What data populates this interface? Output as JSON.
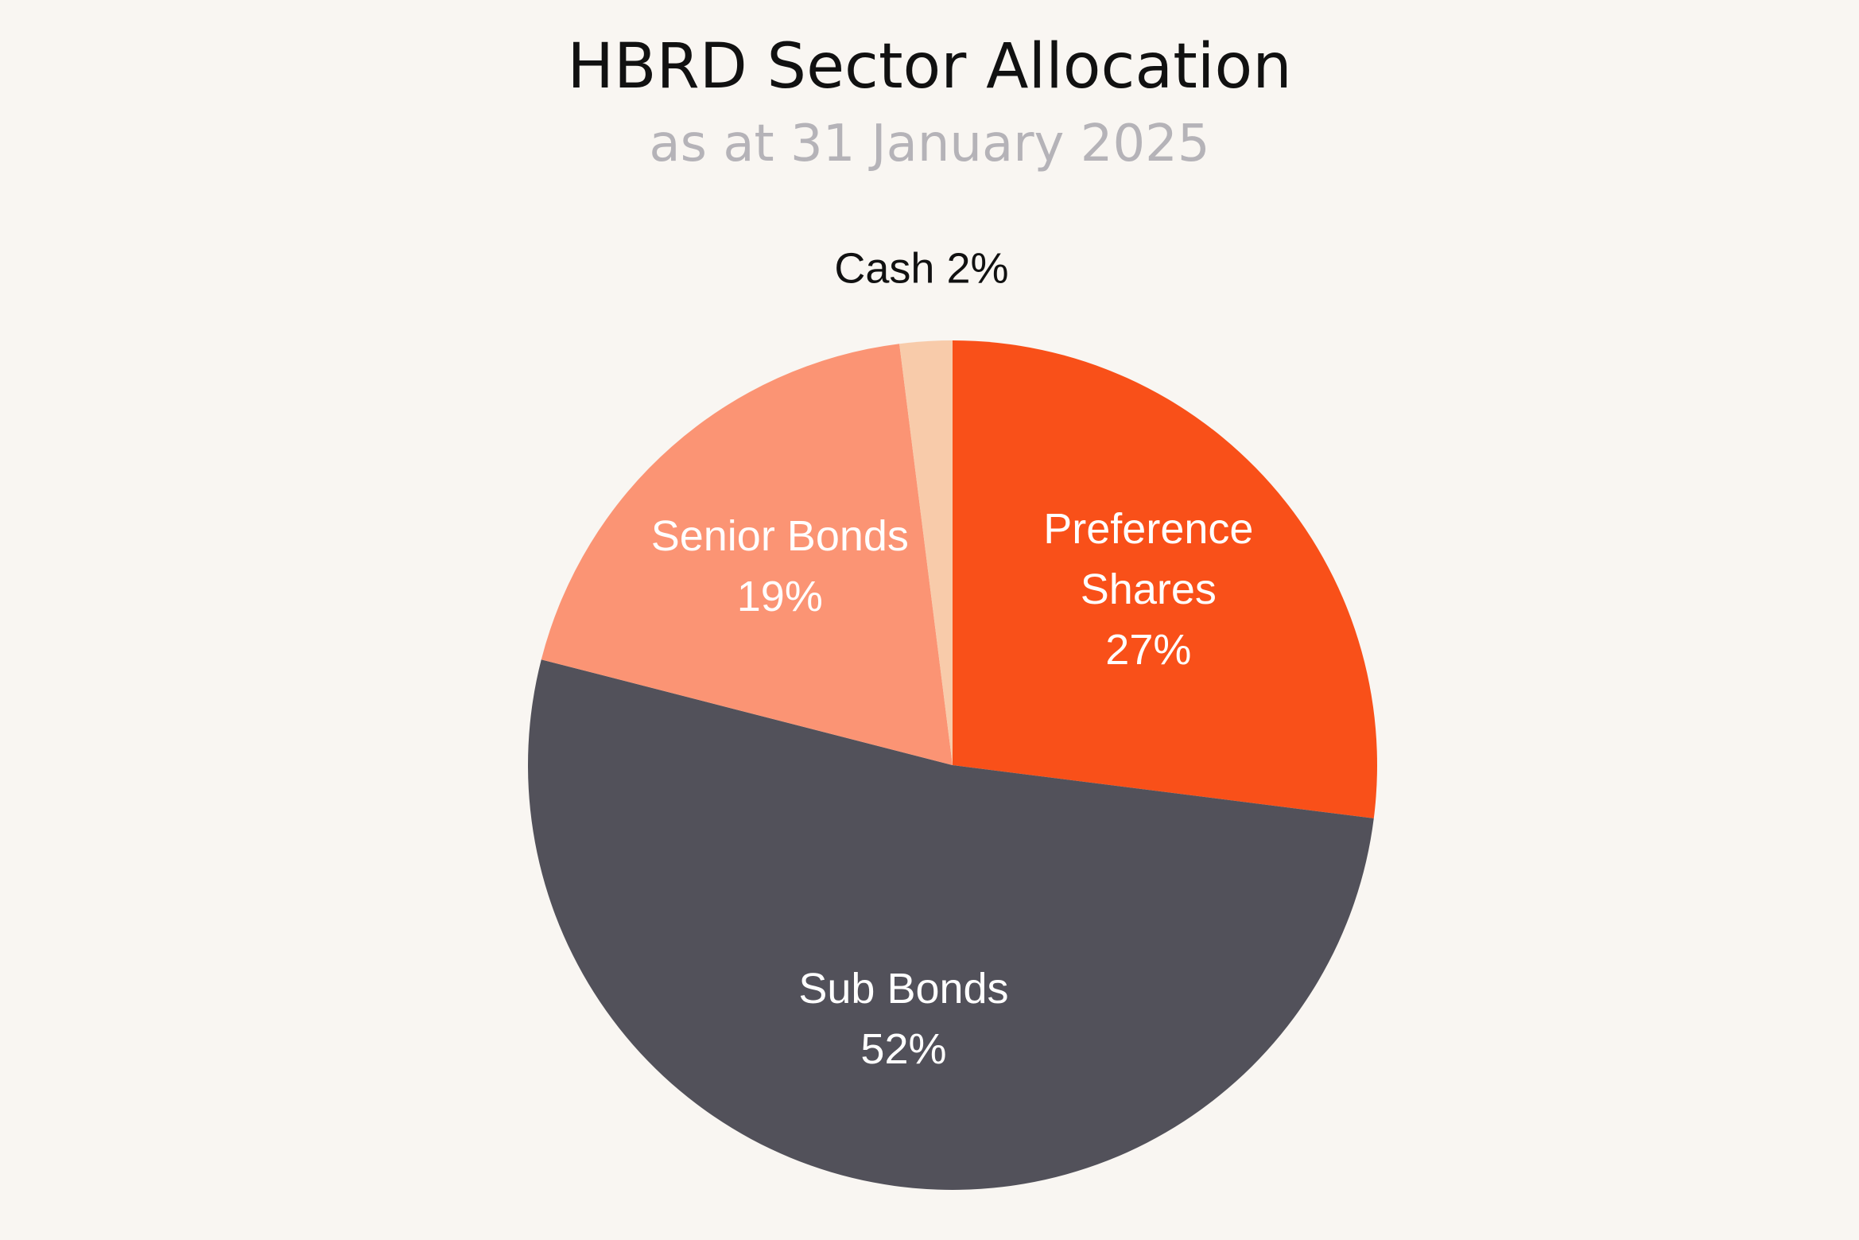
{
  "chart_data": {
    "type": "pie",
    "title": "HBRD Sector Allocation",
    "subtitle": "as at 31 January 2025",
    "start_angle_deg": 0,
    "direction": "clockwise",
    "slices": [
      {
        "name": "Preference Shares",
        "value": 27,
        "label_lines": [
          "Preference",
          "Shares",
          "27%"
        ],
        "color": "#f95019",
        "label_color": "#ffffff",
        "label_placement": "inside"
      },
      {
        "name": "Sub Bonds",
        "value": 52,
        "label_lines": [
          "Sub Bonds",
          "52%"
        ],
        "color": "#52515a",
        "label_color": "#ffffff",
        "label_placement": "inside"
      },
      {
        "name": "Senior Bonds",
        "value": 19,
        "label_lines": [
          "Senior Bonds",
          "19%"
        ],
        "color": "#fb9474",
        "label_color": "#ffffff",
        "label_placement": "inside"
      },
      {
        "name": "Cash",
        "value": 2,
        "label_lines": [
          "Cash 2%"
        ],
        "color": "#f8cbaa",
        "label_color": "#111111",
        "label_placement": "outside"
      }
    ]
  }
}
